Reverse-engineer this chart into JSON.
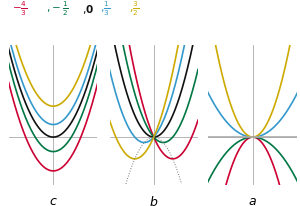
{
  "colors": [
    "#cc0033",
    "#007744",
    "#111111",
    "#3399cc",
    "#ccaa00"
  ],
  "legend_texts": [
    "-\\frac{4}{3}",
    "-\\frac{1}{2}",
    "\\mathbf{0}",
    "\\frac{1}{3}",
    "\\frac{3}{2}"
  ],
  "background": "#ffffff",
  "axis_color": "#aaaaaa",
  "dotted_color": "#777777",
  "c_values": [
    -3.5,
    -1.5,
    0.0,
    1.3,
    3.2
  ],
  "b_values": [
    -3.0,
    -1.5,
    0.0,
    1.5,
    3.0
  ],
  "a_values": [
    -1.5,
    -0.5,
    0.0,
    0.5,
    1.5
  ],
  "gray_color": "#aaaaaa",
  "label_fontsize": 9,
  "line_width": 1.2
}
